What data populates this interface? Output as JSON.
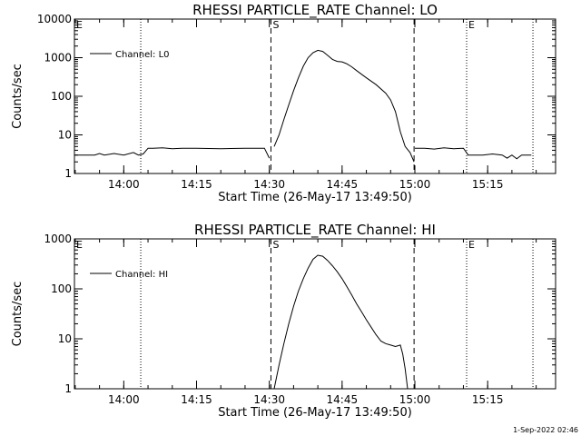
{
  "footer": {
    "timestamp": "1-Sep-2022 02:46"
  },
  "chart_data": [
    {
      "type": "line",
      "title": "RHESSI PARTICLE_RATE Channel: LO",
      "xlabel": "Start Time (26-May-17 13:49:50)",
      "ylabel": "Counts/sec",
      "yscale": "log",
      "ylim": [
        1,
        10000
      ],
      "xlim": [
        "13:49:50",
        "15:29:00"
      ],
      "ytick_labels": [
        "1",
        "10",
        "100",
        "1000",
        "10000"
      ],
      "ytick_values": [
        1,
        10,
        100,
        1000,
        10000
      ],
      "xtick_labels": [
        "14:00",
        "14:15",
        "14:30",
        "14:45",
        "15:00",
        "15:15"
      ],
      "xtick_values": [
        "14:00",
        "14:15",
        "14:30",
        "14:45",
        "15:00",
        "15:15"
      ],
      "legend": {
        "label": "Channel: L0",
        "placement": "top-left"
      },
      "markers": [
        {
          "label": "E",
          "time": "13:49:50",
          "style": "dotted"
        },
        {
          "label": "",
          "time": "14:03:30",
          "style": "dotted"
        },
        {
          "label": "S",
          "time": "14:30:20",
          "style": "dashed"
        },
        {
          "label": "",
          "time": "14:59:50",
          "style": "dashed"
        },
        {
          "label": "E",
          "time": "15:10:40",
          "style": "dotted"
        },
        {
          "label": "",
          "time": "15:24:20",
          "style": "dotted"
        }
      ],
      "series": [
        {
          "name": "Channel: L0",
          "segments": [
            [
              [
                "13:49:50",
                3
              ],
              [
                "13:54:00",
                3
              ],
              [
                "13:55:00",
                3.3
              ],
              [
                "13:56:00",
                3
              ],
              [
                "13:58:00",
                3.3
              ],
              [
                "14:00:00",
                3
              ],
              [
                "14:02:00",
                3.5
              ],
              [
                "14:03:00",
                3
              ],
              [
                "14:04:00",
                3.2
              ],
              [
                "14:05:00",
                4.5
              ],
              [
                "14:06:00",
                4.5
              ],
              [
                "14:08:00",
                4.6
              ],
              [
                "14:10:00",
                4.4
              ],
              [
                "14:12:00",
                4.5
              ],
              [
                "14:15:00",
                4.5
              ],
              [
                "14:20:00",
                4.4
              ],
              [
                "14:25:00",
                4.5
              ],
              [
                "14:29:00",
                4.5
              ],
              [
                "14:30:00",
                2.5
              ]
            ],
            [
              [
                "14:31:00",
                5
              ],
              [
                "14:32:00",
                10
              ],
              [
                "14:33:00",
                25
              ],
              [
                "14:34:00",
                60
              ],
              [
                "14:35:00",
                140
              ],
              [
                "14:36:00",
                300
              ],
              [
                "14:37:00",
                600
              ],
              [
                "14:38:00",
                1000
              ],
              [
                "14:39:00",
                1350
              ],
              [
                "14:40:00",
                1550
              ],
              [
                "14:41:00",
                1450
              ],
              [
                "14:42:00",
                1150
              ],
              [
                "14:43:00",
                900
              ],
              [
                "14:44:00",
                800
              ],
              [
                "14:45:00",
                780
              ],
              [
                "14:46:00",
                690
              ],
              [
                "14:47:00",
                580
              ],
              [
                "14:48:00",
                460
              ],
              [
                "14:50:00",
                300
              ],
              [
                "14:52:00",
                200
              ],
              [
                "14:54:00",
                120
              ],
              [
                "14:55:00",
                80
              ],
              [
                "14:56:00",
                40
              ],
              [
                "14:57:00",
                12
              ],
              [
                "14:58:00",
                5
              ],
              [
                "14:59:00",
                3.5
              ],
              [
                "14:59:50",
                2
              ]
            ],
            [
              [
                "15:00:00",
                4.5
              ],
              [
                "15:02:00",
                4.5
              ],
              [
                "15:04:00",
                4.3
              ],
              [
                "15:06:00",
                4.6
              ],
              [
                "15:08:00",
                4.4
              ],
              [
                "15:10:00",
                4.5
              ],
              [
                "15:11:00",
                3
              ],
              [
                "15:14:00",
                3
              ],
              [
                "15:16:00",
                3.2
              ],
              [
                "15:18:00",
                3
              ],
              [
                "15:19:00",
                2.5
              ],
              [
                "15:20:00",
                3
              ],
              [
                "15:21:00",
                2.4
              ],
              [
                "15:22:00",
                3
              ],
              [
                "15:24:00",
                3
              ]
            ]
          ]
        }
      ]
    },
    {
      "type": "line",
      "title": "RHESSI PARTICLE_RATE Channel: HI",
      "xlabel": "Start Time (26-May-17 13:49:50)",
      "ylabel": "Counts/sec",
      "yscale": "log",
      "ylim": [
        1,
        1000
      ],
      "xlim": [
        "13:49:50",
        "15:29:00"
      ],
      "ytick_labels": [
        "1",
        "10",
        "100",
        "1000"
      ],
      "ytick_values": [
        1,
        10,
        100,
        1000
      ],
      "xtick_labels": [
        "14:00",
        "14:15",
        "14:30",
        "14:45",
        "15:00",
        "15:15"
      ],
      "xtick_values": [
        "14:00",
        "14:15",
        "14:30",
        "14:45",
        "15:00",
        "15:15"
      ],
      "legend": {
        "label": "Channel: HI",
        "placement": "top-left"
      },
      "markers": [
        {
          "label": "E",
          "time": "13:49:50",
          "style": "dotted"
        },
        {
          "label": "",
          "time": "14:03:30",
          "style": "dotted"
        },
        {
          "label": "S",
          "time": "14:30:20",
          "style": "dashed"
        },
        {
          "label": "",
          "time": "14:59:50",
          "style": "dashed"
        },
        {
          "label": "E",
          "time": "15:10:40",
          "style": "dotted"
        },
        {
          "label": "",
          "time": "15:24:20",
          "style": "dotted"
        }
      ],
      "series": [
        {
          "name": "Channel: HI",
          "segments": [
            [
              [
                "14:31:00",
                1
              ],
              [
                "14:32:00",
                3
              ],
              [
                "14:33:00",
                8
              ],
              [
                "14:34:00",
                20
              ],
              [
                "14:35:00",
                45
              ],
              [
                "14:36:00",
                90
              ],
              [
                "14:37:00",
                160
              ],
              [
                "14:38:00",
                260
              ],
              [
                "14:39:00",
                390
              ],
              [
                "14:40:00",
                470
              ],
              [
                "14:41:00",
                450
              ],
              [
                "14:42:00",
                370
              ],
              [
                "14:43:00",
                290
              ],
              [
                "14:44:00",
                220
              ],
              [
                "14:45:00",
                160
              ],
              [
                "14:46:00",
                110
              ],
              [
                "14:47:00",
                75
              ],
              [
                "14:48:00",
                50
              ],
              [
                "14:49:00",
                35
              ],
              [
                "14:50:00",
                24
              ],
              [
                "14:51:00",
                17
              ],
              [
                "14:52:00",
                12
              ],
              [
                "14:53:00",
                9
              ],
              [
                "14:54:00",
                8
              ],
              [
                "14:55:00",
                7.5
              ],
              [
                "14:56:00",
                7
              ],
              [
                "14:57:00",
                7.5
              ],
              [
                "14:57:30",
                5
              ],
              [
                "14:58:00",
                2.5
              ],
              [
                "14:58:30",
                1
              ]
            ]
          ]
        }
      ]
    }
  ]
}
